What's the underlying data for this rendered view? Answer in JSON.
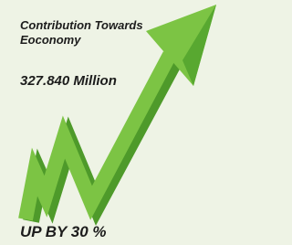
{
  "header": {
    "title": "Contribution Towards Eoconomy"
  },
  "value": "327.840 Million",
  "footer": "UP BY 30 %"
}
